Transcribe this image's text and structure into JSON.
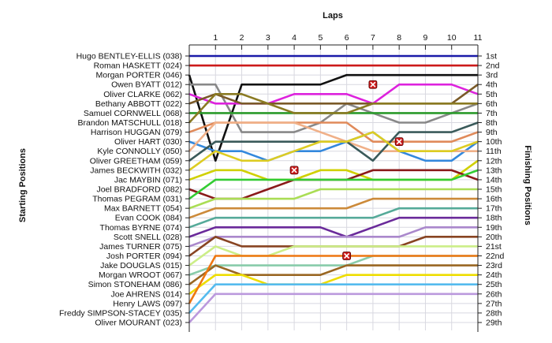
{
  "chart_data": {
    "type": "line",
    "title": "",
    "top_axis_title": "Laps",
    "left_axis_title": "Starting Positions",
    "right_axis_title": "Finishing Positions",
    "laps": [
      1,
      2,
      3,
      4,
      5,
      6,
      7,
      8,
      9,
      10,
      11
    ],
    "ylim": [
      1,
      29
    ],
    "grid": true,
    "starting_labels": [
      "Hugo BENTLEY-ELLIS (038)",
      "Roman HASKETT (024)",
      "Morgan PORTER (046)",
      "Owen BYATT (012)",
      "Oliver CLARKE (062)",
      "Bethany ABBOTT (022)",
      "Samuel CORNWELL (068)",
      "Brandon MATSCHULL (018)",
      "Harrison HUGGAN (079)",
      "Oliver HART (030)",
      "Kyle CONNOLLY (050)",
      "Oliver GREETHAM (059)",
      "James BECKWITH (032)",
      "Jac MAYBIN (071)",
      "Joel BRADFORD (082)",
      "Thomas PEGRAM (031)",
      "Max BARNETT (054)",
      "Evan COOK (084)",
      "Thomas BYRNE (074)",
      "Scott SNELL (028)",
      "James TURNER (075)",
      "Josh PORTER (094)",
      "Jake DOUGLAS (015)",
      "Morgan WROOT (067)",
      "Simon STONEHAM (086)",
      "Joe AHRENS (014)",
      "Henry LAWS (097)",
      "Freddy SIMPSON-STACEY (035)",
      "Oliver MOURANT (023)"
    ],
    "finishing_labels": [
      "1st",
      "2nd",
      "3rd",
      "4th",
      "5th",
      "6th",
      "7th",
      "8th",
      "9th",
      "10th",
      "11th",
      "12th",
      "13th",
      "14th",
      "15th",
      "16th",
      "17th",
      "18th",
      "19th",
      "20th",
      "21st",
      "22nd",
      "23rd",
      "24th",
      "25th",
      "26th",
      "27th",
      "28th",
      "29th"
    ],
    "series": [
      {
        "start": 1,
        "positions": [
          1,
          1,
          1,
          1,
          1,
          1,
          1,
          1,
          1,
          1,
          1
        ],
        "color": "#1a1aa8"
      },
      {
        "start": 2,
        "positions": [
          2,
          2,
          2,
          2,
          2,
          2,
          2,
          2,
          2,
          2,
          2
        ],
        "color": "#cc1a1a"
      },
      {
        "start": 3,
        "positions": [
          12,
          4,
          4,
          4,
          4,
          3,
          3,
          3,
          3,
          3,
          3
        ],
        "color": "#111111"
      },
      {
        "start": 4,
        "positions": [
          4,
          9,
          9,
          9,
          8,
          6,
          7,
          8,
          8,
          7,
          6
        ],
        "color": "#888888"
      },
      {
        "start": 5,
        "positions": [
          6,
          6,
          6,
          5,
          5,
          5,
          6,
          4,
          4,
          4,
          5
        ],
        "color": "#dd22dd"
      },
      {
        "start": 6,
        "positions": [
          5,
          6,
          6,
          6,
          6,
          6,
          6,
          6,
          6,
          6,
          4
        ],
        "color": "#7a5a28"
      },
      {
        "start": 7,
        "positions": [
          7,
          7,
          7,
          7,
          7,
          7,
          7,
          7,
          7,
          7,
          7
        ],
        "color": "#2a9a2a"
      },
      {
        "start": 8,
        "positions": [
          5,
          5,
          6,
          7,
          7,
          7,
          6,
          6,
          6,
          6,
          6
        ],
        "color": "#8a7a22"
      },
      {
        "start": 9,
        "positions": [
          8,
          8,
          8,
          8,
          8,
          8,
          10,
          10,
          10,
          10,
          9
        ],
        "color": "#e08a5a"
      },
      {
        "start": 10,
        "positions": [
          11,
          11,
          12,
          11,
          11,
          10,
          9,
          11,
          12,
          12,
          10
        ],
        "color": "#3388dd"
      },
      {
        "start": 11,
        "positions": [
          8,
          8,
          8,
          8,
          9,
          10,
          11,
          11,
          11,
          11,
          11
        ],
        "color": "#f0b088"
      },
      {
        "start": 12,
        "positions": [
          10,
          10,
          10,
          10,
          10,
          10,
          12,
          9,
          9,
          9,
          8
        ],
        "color": "#3a5a5a"
      },
      {
        "start": 13,
        "positions": [
          11,
          12,
          12,
          11,
          10,
          10,
          9,
          11,
          11,
          11,
          10
        ],
        "color": "#ddcc22"
      },
      {
        "start": 14,
        "positions": [
          13,
          13,
          14,
          14,
          13,
          13,
          14,
          14,
          14,
          14,
          12
        ],
        "color": "#d0d000"
      },
      {
        "start": 15,
        "positions": [
          16,
          16,
          15,
          14,
          14,
          14,
          13,
          13,
          13,
          13,
          14
        ],
        "color": "#8a1a1a"
      },
      {
        "start": 16,
        "positions": [
          14,
          14,
          14,
          14,
          14,
          14,
          14,
          14,
          14,
          14,
          13
        ],
        "color": "#33cc33"
      },
      {
        "start": 17,
        "positions": [
          16,
          16,
          16,
          16,
          15,
          15,
          15,
          15,
          15,
          15,
          15
        ],
        "color": "#aadd55"
      },
      {
        "start": 18,
        "positions": [
          17,
          17,
          17,
          17,
          17,
          17,
          16,
          16,
          16,
          16,
          16
        ],
        "color": "#cc8a3a"
      },
      {
        "start": 19,
        "positions": [
          18,
          18,
          18,
          18,
          18,
          18,
          18,
          17,
          17,
          17,
          17
        ],
        "color": "#55aa99"
      },
      {
        "start": 20,
        "positions": [
          19,
          19,
          19,
          19,
          19,
          20,
          19,
          18,
          18,
          18,
          18
        ],
        "color": "#6a2a9a"
      },
      {
        "start": 21,
        "positions": [
          20,
          20,
          20,
          20,
          20,
          20,
          20,
          20,
          19,
          19,
          19
        ],
        "color": "#aa88cc"
      },
      {
        "start": 22,
        "positions": [
          20,
          21,
          21,
          21,
          21,
          21,
          21,
          21,
          20,
          20,
          20
        ],
        "color": "#884422"
      },
      {
        "start": 23,
        "positions": [
          21,
          22,
          22,
          21,
          21,
          21,
          21,
          21,
          21,
          21,
          21
        ],
        "color": "#ccee88"
      },
      {
        "start": 24,
        "positions": [
          23,
          23,
          23,
          23,
          23,
          23,
          22,
          22,
          22,
          22,
          22
        ],
        "color": "#88ccaa"
      },
      {
        "start": 25,
        "positions": [
          23,
          24,
          24,
          24,
          24,
          23,
          23,
          23,
          23,
          23,
          23
        ],
        "color": "#996622"
      },
      {
        "start": 26,
        "positions": [
          24,
          24,
          25,
          25,
          25,
          24,
          24,
          24,
          24,
          24,
          24
        ],
        "color": "#eedd00"
      },
      {
        "start": 27,
        "positions": [
          22,
          22,
          22,
          22,
          22,
          22,
          22,
          22,
          22,
          22,
          22
        ],
        "color": "#ee7711"
      },
      {
        "start": 28,
        "positions": [
          25,
          25,
          25,
          25,
          25,
          25,
          25,
          25,
          25,
          25,
          25
        ],
        "color": "#55bbee"
      },
      {
        "start": 29,
        "positions": [
          26,
          26,
          26,
          26,
          26,
          26,
          26,
          26,
          26,
          26,
          26
        ],
        "color": "#bb99dd"
      }
    ],
    "retirements": [
      {
        "lap": 4,
        "position": 13
      },
      {
        "lap": 6,
        "position": 22
      },
      {
        "lap": 7,
        "position": 4
      },
      {
        "lap": 8,
        "position": 10
      }
    ]
  }
}
